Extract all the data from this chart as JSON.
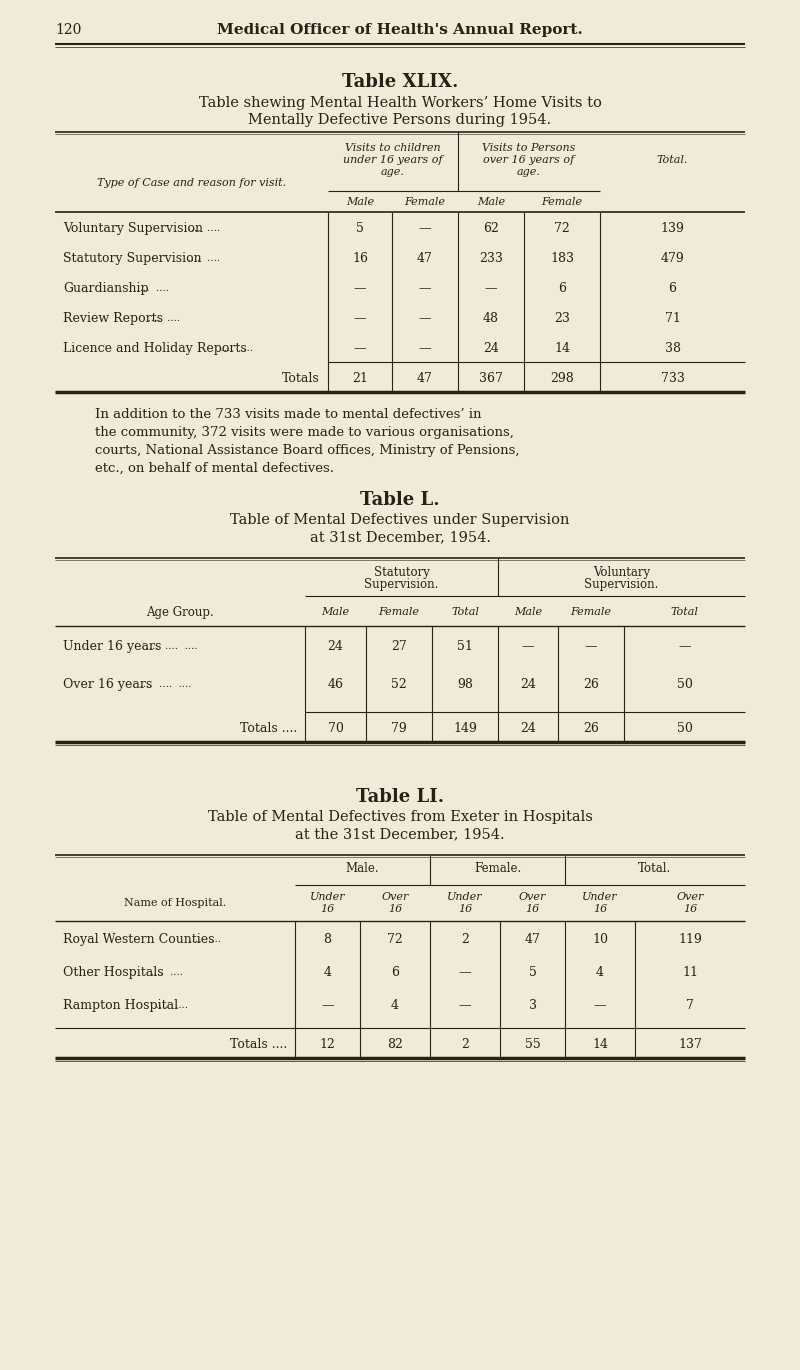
{
  "bg_color": "#f0ead8",
  "text_color": "#2a2018",
  "page_number": "120",
  "page_header": "Medical Officer of Health's Annual Report.",
  "table_xlix_title1": "Table XLIX.",
  "table_xlix_title2a": "Table shewing Mental Health Workers’ Home Visits to",
  "table_xlix_title2b": "Mentally Defective Persons during 1954.",
  "table_xlix_col_header_left": "Type of Case and reason for visit.",
  "table_xlix_rows": [
    [
      "Voluntary Supervision",
      "5",
      "—",
      "62",
      "72",
      "139"
    ],
    [
      "Statutory Supervision",
      "16",
      "47",
      "233",
      "183",
      "479"
    ],
    [
      "Guardianship",
      "—",
      "—",
      "—",
      "6",
      "6"
    ],
    [
      "Review Reports",
      "—",
      "—",
      "48",
      "23",
      "71"
    ],
    [
      "Licence and Holiday Reports",
      "—",
      "—",
      "24",
      "14",
      "38"
    ]
  ],
  "table_xlix_totals": [
    "Totals",
    "21",
    "47",
    "367",
    "298",
    "733"
  ],
  "paragraph_lines": [
    "In addition to the 733 visits made to mental defectives’ in",
    "the community, 372 visits were made to various organisations,",
    "courts, National Assistance Board offices, Ministry of Pensions,",
    "etc., on behalf of mental defectives."
  ],
  "table_l_title1": "Table L.",
  "table_l_title2a": "Table of Mental Defectives under Supervision",
  "table_l_title2b": "at 31st December, 1954.",
  "table_l_rows": [
    [
      "Under 16 years",
      "24",
      "27",
      "51",
      "—",
      "—",
      "—"
    ],
    [
      "Over 16 years",
      "46",
      "52",
      "98",
      "24",
      "26",
      "50"
    ]
  ],
  "table_l_totals": [
    "Totals ....",
    "70",
    "79",
    "149",
    "24",
    "26",
    "50"
  ],
  "table_li_title1": "Table LI.",
  "table_li_title2a": "Table of Mental Defectives from Exeter in Hospitals",
  "table_li_title2b": "at the 31st December, 1954.",
  "table_li_rows": [
    [
      "Royal Western Counties",
      "8",
      "72",
      "2",
      "47",
      "10",
      "119"
    ],
    [
      "Other Hospitals",
      "4",
      "6",
      "—",
      "5",
      "4",
      "11"
    ],
    [
      "Rampton Hospital",
      "—",
      "4",
      "—",
      "3",
      "—",
      "7"
    ]
  ],
  "table_li_totals": [
    "Totals ....",
    "12",
    "82",
    "2",
    "55",
    "14",
    "137"
  ]
}
